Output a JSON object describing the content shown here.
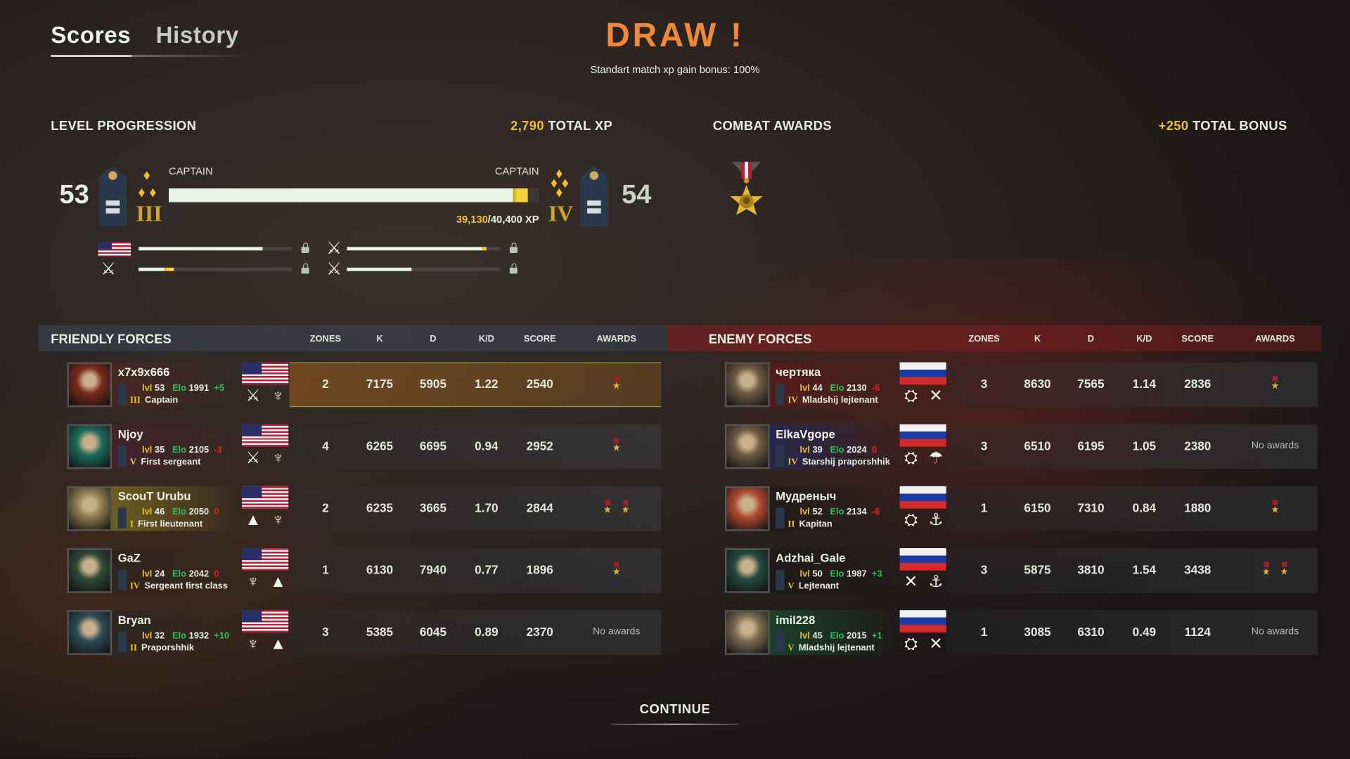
{
  "tabs": [
    {
      "label": "Scores",
      "active": true
    },
    {
      "label": "History",
      "active": false
    }
  ],
  "header": {
    "title": "DRAW !",
    "subtitle": "Standart match xp gain bonus: 100%"
  },
  "level_progression": {
    "label": "LEVEL PROGRESSION",
    "total_xp_value": "2,790",
    "total_xp_label": "TOTAL XP",
    "current_level": "53",
    "next_level": "54",
    "current_rank": "CAPTAIN",
    "next_rank": "CAPTAIN",
    "current_tier": "III",
    "next_tier": "IV",
    "xp_current": "39,130",
    "xp_total": "/40,400 XP",
    "progress_before": 0.93,
    "progress_after": 0.969,
    "sub_progress": [
      {
        "icon": "us-flag-icon",
        "before": 0.81,
        "after": 0.81,
        "locked": true
      },
      {
        "icon": "cavalry-emblem-icon",
        "before": 0.88,
        "after": 0.91,
        "locked": true
      },
      {
        "icon": "cavalry-infantry-emblem-icon",
        "before": 0.17,
        "after": 0.23,
        "locked": true
      },
      {
        "icon": "infantry-emblem-icon",
        "before": 0.42,
        "after": 0.42,
        "locked": true
      }
    ]
  },
  "combat_awards": {
    "label": "COMBAT AWARDS",
    "bonus_value": "+250",
    "bonus_label": "TOTAL BONUS",
    "awards": [
      "skull-star-medal-icon"
    ]
  },
  "columns": {
    "zones": "ZONES",
    "k": "K",
    "d": "D",
    "kd": "K/D",
    "score": "SCORE",
    "awards": "AWARDS"
  },
  "friendly": {
    "title": "FRIENDLY FORCES",
    "players": [
      {
        "name": "x7x9x666",
        "lvl": "53",
        "elo": "1991",
        "elo_delta": "+5",
        "rank": "Captain",
        "tier": "III",
        "zones": "2",
        "k": "7175",
        "d": "5905",
        "kd": "1.22",
        "score": "2540",
        "awards": 1,
        "awards_text": "",
        "highlight": true,
        "emblems": [
          "cavalry-icon",
          "infantry-icon"
        ]
      },
      {
        "name": "Njoy",
        "lvl": "35",
        "elo": "2105",
        "elo_delta": "-3",
        "rank": "First sergeant",
        "tier": "V",
        "zones": "4",
        "k": "6265",
        "d": "6695",
        "kd": "0.94",
        "score": "2952",
        "awards": 1,
        "awards_text": "",
        "emblems": [
          "cavalry-icon",
          "infantry-icon"
        ]
      },
      {
        "name": "ScouT Urubu",
        "lvl": "46",
        "elo": "2050",
        "elo_delta": "0",
        "rank": "First lieutenant",
        "tier": "I",
        "zones": "2",
        "k": "6235",
        "d": "3665",
        "kd": "1.70",
        "score": "2844",
        "awards": 2,
        "awards_text": "",
        "emblems": [
          "artillery-icon",
          "infantry-icon"
        ]
      },
      {
        "name": "GaZ",
        "lvl": "24",
        "elo": "2042",
        "elo_delta": "0",
        "rank": "Sergeant first class",
        "tier": "IV",
        "zones": "1",
        "k": "6130",
        "d": "7940",
        "kd": "0.77",
        "score": "1896",
        "awards": 1,
        "awards_text": "",
        "emblems": [
          "infantry-icon",
          "artillery-icon"
        ]
      },
      {
        "name": "Bryan",
        "lvl": "32",
        "elo": "1932",
        "elo_delta": "+10",
        "rank": "Praporshhik",
        "tier": "II",
        "zones": "3",
        "k": "5385",
        "d": "6045",
        "kd": "0.89",
        "score": "2370",
        "awards": 0,
        "awards_text": "No awards",
        "emblems": [
          "infantry-icon",
          "artillery-icon"
        ]
      }
    ]
  },
  "enemy": {
    "title": "ENEMY FORCES",
    "players": [
      {
        "name": "чертяка",
        "lvl": "44",
        "elo": "2130",
        "elo_delta": "-6",
        "rank": "Mladshij lejtenant",
        "tier": "IV",
        "zones": "3",
        "k": "8630",
        "d": "7565",
        "kd": "1.14",
        "score": "2836",
        "awards": 1,
        "awards_text": "",
        "emblems": [
          "tank-icon",
          "crossed-rifles-icon"
        ]
      },
      {
        "name": "ElkaVgope",
        "lvl": "39",
        "elo": "2024",
        "elo_delta": "0",
        "rank": "Starshij praporshhik",
        "tier": "IV",
        "zones": "3",
        "k": "6510",
        "d": "6195",
        "kd": "1.05",
        "score": "2380",
        "awards": 0,
        "awards_text": "No awards",
        "emblems": [
          "tank-icon",
          "paratrooper-icon"
        ]
      },
      {
        "name": "Мудреныч",
        "lvl": "52",
        "elo": "2134",
        "elo_delta": "-6",
        "rank": "Kapitan",
        "tier": "II",
        "zones": "1",
        "k": "6150",
        "d": "7310",
        "kd": "0.84",
        "score": "1880",
        "awards": 1,
        "awards_text": "",
        "emblems": [
          "tank-icon",
          "anchor-icon"
        ]
      },
      {
        "name": "Adzhai_Gale",
        "lvl": "50",
        "elo": "1987",
        "elo_delta": "+3",
        "rank": "Lejtenant",
        "tier": "V",
        "zones": "3",
        "k": "5875",
        "d": "3810",
        "kd": "1.54",
        "score": "3438",
        "awards": 2,
        "awards_text": "",
        "emblems": [
          "crossed-rifles-icon",
          "anchor-icon"
        ]
      },
      {
        "name": "imil228",
        "lvl": "45",
        "elo": "2015",
        "elo_delta": "+1",
        "rank": "Mladshij lejtenant",
        "tier": "V",
        "zones": "1",
        "k": "3085",
        "d": "6310",
        "kd": "0.49",
        "score": "1124",
        "awards": 0,
        "awards_text": "No awards",
        "emblems": [
          "tank-icon",
          "crossed-rifles-icon"
        ]
      }
    ]
  },
  "labels": {
    "lvl": "lvl",
    "elo": "Elo"
  },
  "continue_label": "CONTINUE",
  "colors": {
    "accent": "#f0883c",
    "xp_yellow": "#e9c23a",
    "elo_green": "#2fbf5a",
    "elo_red": "#e02424",
    "friendly_header": "#3c465a",
    "enemy_header": "#8c1e1e"
  }
}
